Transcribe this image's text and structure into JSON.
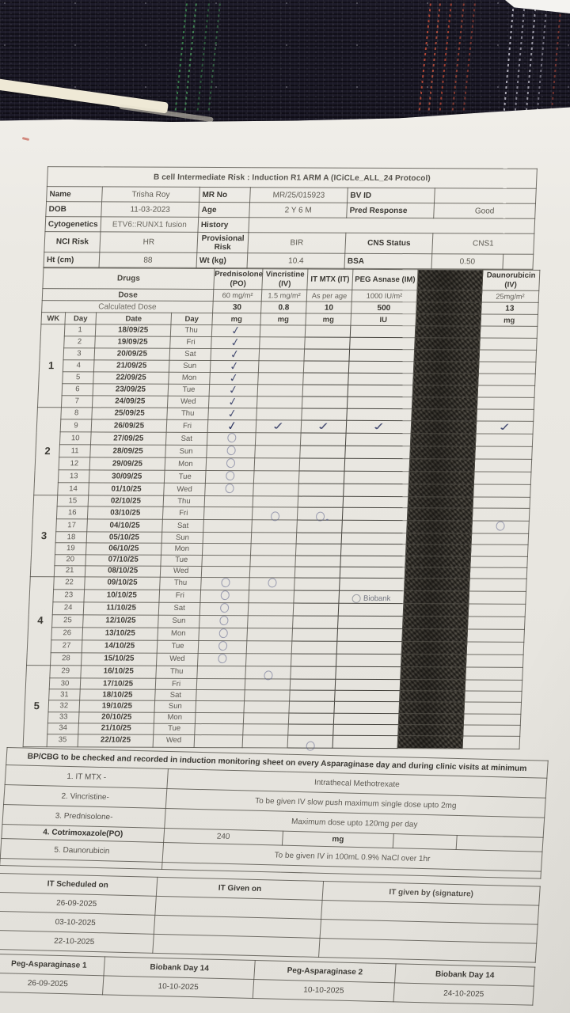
{
  "title": "B cell Intermediate Risk : Induction R1 ARM A (ICiCLe_ALL_24 Protocol)",
  "colors": {
    "ink": "#2d3562",
    "paper": "#efede8",
    "fabric": "#191724",
    "redaction": "#3b3832"
  },
  "patient": {
    "name_label": "Name",
    "name": "Trisha Roy",
    "mr_label": "MR No",
    "mr": "MR/25/015923",
    "bvid_label": "BV ID",
    "bvid": "",
    "dob_label": "DOB",
    "dob": "11-03-2023",
    "age_label": "Age",
    "age": "2 Y 6 M",
    "pred_label": "Pred Response",
    "pred": "Good",
    "cyto_label": "Cytogenetics",
    "cyto": "ETV6::RUNX1 fusion",
    "history_label": "History",
    "history": "",
    "nci_label": "NCI Risk",
    "nci": "HR",
    "prov_label": "Provisional Risk",
    "prov": "BIR",
    "cns_label": "CNS Status",
    "cns": "CNS1",
    "ht_label": "Ht (cm)",
    "ht": "88",
    "wt_label": "Wt (kg)",
    "wt": "10.4",
    "bsa_label": "BSA",
    "bsa": "0.50"
  },
  "schedule": {
    "row_labels": {
      "drugs": "Drugs",
      "dose": "Dose",
      "calc": "Calculated Dose"
    },
    "col_headers": {
      "wk": "WK",
      "day": "Day",
      "date": "Date",
      "weekday": "Day"
    },
    "biobank_label": "Biobank",
    "drugs": [
      {
        "name": "Prednisolone (PO)",
        "dose": "60 mg/m²",
        "calc": "30",
        "unit": "mg"
      },
      {
        "name": "Vincristine (IV)",
        "dose": "1.5 mg/m²",
        "calc": "0.8",
        "unit": "mg"
      },
      {
        "name": "IT MTX (IT)",
        "dose": "As per age",
        "calc": "10",
        "unit": "mg"
      },
      {
        "name": "PEG Asnase (IM)",
        "dose": "1000 IU/m²",
        "calc": "500",
        "unit": "IU"
      },
      {
        "name": "",
        "dose": "",
        "calc": "",
        "unit": "",
        "redacted": true
      },
      {
        "name": "Daunorubicin (IV)",
        "dose": "25mg/m²",
        "calc": "13",
        "unit": "mg"
      }
    ],
    "weeks": [
      {
        "wk": "1",
        "days": [
          {
            "day": "1",
            "date": "18/09/25",
            "weekday": "Thu",
            "marks": {
              "pred": "check"
            }
          },
          {
            "day": "2",
            "date": "19/09/25",
            "weekday": "Fri",
            "marks": {
              "pred": "check"
            }
          },
          {
            "day": "3",
            "date": "20/09/25",
            "weekday": "Sat",
            "marks": {
              "pred": "check"
            }
          },
          {
            "day": "4",
            "date": "21/09/25",
            "weekday": "Sun",
            "marks": {
              "pred": "check"
            }
          },
          {
            "day": "5",
            "date": "22/09/25",
            "weekday": "Mon",
            "marks": {
              "pred": "check"
            }
          },
          {
            "day": "6",
            "date": "23/09/25",
            "weekday": "Tue",
            "marks": {
              "pred": "check"
            }
          },
          {
            "day": "7",
            "date": "24/09/25",
            "weekday": "Wed",
            "marks": {
              "pred": "check"
            }
          }
        ]
      },
      {
        "wk": "2",
        "days": [
          {
            "day": "8",
            "date": "25/09/25",
            "weekday": "Thu",
            "marks": {
              "pred": "check"
            }
          },
          {
            "day": "9",
            "date": "26/09/25",
            "weekday": "Fri",
            "marks": {
              "pred": "check bold",
              "vinc": "check long",
              "it": "check long",
              "peg": "check long",
              "dauno": "check long"
            }
          },
          {
            "day": "10",
            "date": "27/09/25",
            "weekday": "Sat",
            "marks": {
              "pred": "circle"
            }
          },
          {
            "day": "11",
            "date": "28/09/25",
            "weekday": "Sun",
            "marks": {
              "pred": "circle"
            }
          },
          {
            "day": "12",
            "date": "29/09/25",
            "weekday": "Mon",
            "marks": {
              "pred": "circle"
            }
          },
          {
            "day": "13",
            "date": "30/09/25",
            "weekday": "Tue",
            "marks": {
              "pred": "circle"
            }
          },
          {
            "day": "14",
            "date": "01/10/25",
            "weekday": "Wed",
            "marks": {
              "pred": "circle"
            }
          }
        ]
      },
      {
        "wk": "3",
        "days": [
          {
            "day": "15",
            "date": "02/10/25",
            "weekday": "Thu",
            "marks": {}
          },
          {
            "day": "16",
            "date": "03/10/25",
            "weekday": "Fri",
            "marks": {
              "vinc": "circle lo",
              "it": "circle dot lo"
            }
          },
          {
            "day": "17",
            "date": "04/10/25",
            "weekday": "Sat",
            "marks": {
              "dauno": "circle"
            }
          },
          {
            "day": "18",
            "date": "05/10/25",
            "weekday": "Sun",
            "marks": {}
          },
          {
            "day": "19",
            "date": "06/10/25",
            "weekday": "Mon",
            "marks": {}
          },
          {
            "day": "20",
            "date": "07/10/25",
            "weekday": "Tue",
            "marks": {}
          },
          {
            "day": "21",
            "date": "08/10/25",
            "weekday": "Wed",
            "marks": {}
          }
        ]
      },
      {
        "wk": "4",
        "days": [
          {
            "day": "22",
            "date": "09/10/25",
            "weekday": "Thu",
            "marks": {
              "pred": "circle",
              "vinc": "circle"
            }
          },
          {
            "day": "23",
            "date": "10/10/25",
            "weekday": "Fri",
            "marks": {
              "pred": "circle",
              "peg": "biobank"
            }
          },
          {
            "day": "24",
            "date": "11/10/25",
            "weekday": "Sat",
            "marks": {
              "pred": "circle"
            }
          },
          {
            "day": "25",
            "date": "12/10/25",
            "weekday": "Sun",
            "marks": {
              "pred": "circle"
            }
          },
          {
            "day": "26",
            "date": "13/10/25",
            "weekday": "Mon",
            "marks": {
              "pred": "circle"
            }
          },
          {
            "day": "27",
            "date": "14/10/25",
            "weekday": "Tue",
            "marks": {
              "pred": "circle"
            }
          },
          {
            "day": "28",
            "date": "15/10/25",
            "weekday": "Wed",
            "marks": {
              "pred": "circle"
            }
          }
        ]
      },
      {
        "wk": "5",
        "days": [
          {
            "day": "29",
            "date": "16/10/25",
            "weekday": "Thu",
            "marks": {
              "vinc": "circle lo"
            }
          },
          {
            "day": "30",
            "date": "17/10/25",
            "weekday": "Fri",
            "marks": {}
          },
          {
            "day": "31",
            "date": "18/10/25",
            "weekday": "Sat",
            "marks": {}
          },
          {
            "day": "32",
            "date": "19/10/25",
            "weekday": "Sun",
            "marks": {}
          },
          {
            "day": "33",
            "date": "20/10/25",
            "weekday": "Mon",
            "marks": {}
          },
          {
            "day": "34",
            "date": "21/10/25",
            "weekday": "Tue",
            "marks": {}
          },
          {
            "day": "35",
            "date": "22/10/25",
            "weekday": "Wed",
            "marks": {
              "it": "circle lo2"
            }
          }
        ]
      }
    ]
  },
  "footer": {
    "bp_note": "BP/CBG to be checked and recorded in induction monitoring sheet on every Asparaginase day and during clinic visits at minimum",
    "items": [
      {
        "label": "1. IT MTX -",
        "note": "Intrathecal Methotrexate"
      },
      {
        "label": "2. Vincristine-",
        "note": "To be given IV slow push maximum single dose upto 2mg"
      },
      {
        "label": "3. Prednisolone-",
        "note": "Maximum dose upto 120mg per day"
      },
      {
        "label": "4. Cotrimoxazole(PO)",
        "value": "240",
        "unit": "mg"
      },
      {
        "label": "5. Daunorubicin",
        "note": "To be given IV in 100mL 0.9% NaCl over 1hr"
      }
    ]
  },
  "it_section": {
    "scheduled_label": "IT Scheduled on",
    "given_label": "IT Given on",
    "signature_label": "IT given by (signature)",
    "scheduled_dates": [
      "26-09-2025",
      "03-10-2025",
      "22-10-2025"
    ]
  },
  "peg_section": {
    "cols": [
      {
        "label": "Peg-Asparaginase 1",
        "date": "26-09-2025"
      },
      {
        "label": "Biobank Day 14",
        "date": "10-10-2025"
      },
      {
        "label": "Peg-Asparaginase 2",
        "date": "10-10-2025"
      },
      {
        "label": "Biobank Day 14",
        "date": "24-10-2025"
      }
    ]
  }
}
